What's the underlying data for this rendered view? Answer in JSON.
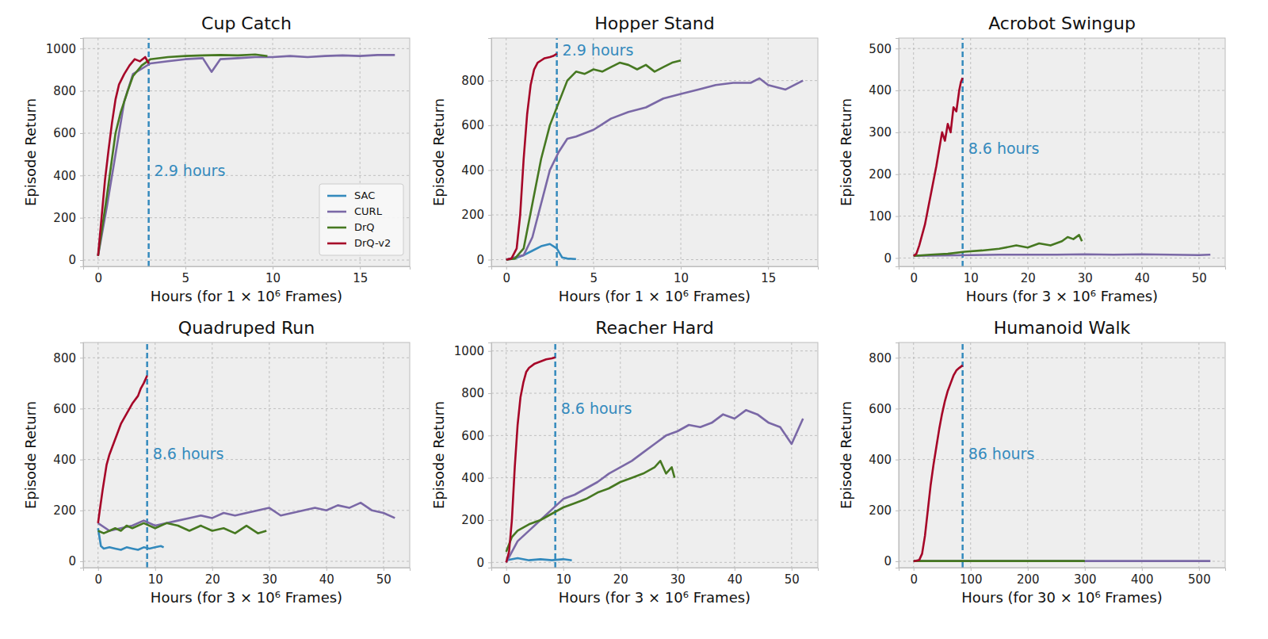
{
  "chart_data": [
    {
      "type": "line",
      "title": "Cup Catch",
      "x_label": "Hours (for 1 × 10⁶ Frames)",
      "y_label": "Episode Return",
      "xlim": [
        -0.85,
        17.85
      ],
      "ylim": [
        -30,
        1050
      ],
      "xticks": [
        0,
        5,
        10,
        15
      ],
      "yticks": [
        0,
        200,
        400,
        600,
        800,
        1000
      ],
      "grid": true,
      "legend": "lower right",
      "series": [
        {
          "name": "SAC",
          "color": "#348ABD",
          "x": [],
          "values": []
        },
        {
          "name": "CURL",
          "color": "#7A68A6",
          "x": [
            0,
            0.5,
            1,
            1.5,
            2,
            3,
            4,
            5,
            6,
            6.5,
            7,
            8,
            9,
            10,
            11,
            12,
            13,
            14,
            15,
            16,
            17
          ],
          "values": [
            20,
            250,
            500,
            750,
            880,
            930,
            940,
            950,
            955,
            890,
            950,
            955,
            960,
            960,
            965,
            960,
            965,
            968,
            965,
            970,
            970
          ]
        },
        {
          "name": "DrQ",
          "color": "#467821",
          "x": [
            0,
            0.5,
            1,
            1.3,
            1.7,
            2,
            2.5,
            3,
            4,
            5,
            6,
            7,
            8,
            9,
            9.7
          ],
          "values": [
            20,
            300,
            600,
            700,
            800,
            870,
            920,
            950,
            960,
            965,
            968,
            970,
            968,
            972,
            965
          ]
        },
        {
          "name": "DrQ-v2",
          "color": "#A60628",
          "x": [
            0,
            0.2,
            0.4,
            0.6,
            0.8,
            1,
            1.2,
            1.5,
            1.8,
            2.1,
            2.4,
            2.7,
            2.9
          ],
          "values": [
            20,
            200,
            380,
            520,
            650,
            760,
            830,
            880,
            920,
            950,
            940,
            960,
            930
          ]
        }
      ],
      "annotations": [
        {
          "x": 2.9,
          "y": 420,
          "text": "2.9 hours"
        }
      ]
    },
    {
      "type": "line",
      "title": "Hopper Stand",
      "x_label": "Hours (for 1 × 10⁶ Frames)",
      "y_label": "Episode Return",
      "xlim": [
        -0.85,
        17.85
      ],
      "ylim": [
        -30,
        990
      ],
      "xticks": [
        0,
        5,
        10,
        15
      ],
      "yticks": [
        0,
        200,
        400,
        600,
        800
      ],
      "grid": true,
      "series": [
        {
          "color": "#348ABD",
          "x": [
            0,
            0.5,
            1,
            1.5,
            2,
            2.5,
            2.9,
            3.2,
            3.5,
            4
          ],
          "values": [
            0,
            5,
            20,
            40,
            60,
            70,
            50,
            10,
            5,
            3
          ]
        },
        {
          "color": "#7A68A6",
          "x": [
            0,
            1,
            1.5,
            2,
            2.5,
            3,
            3.5,
            4,
            5,
            6,
            7,
            8,
            9,
            10,
            11,
            12,
            13,
            14,
            14.5,
            15,
            16,
            17
          ],
          "values": [
            0,
            20,
            100,
            250,
            400,
            480,
            540,
            550,
            580,
            630,
            660,
            680,
            720,
            740,
            760,
            780,
            790,
            790,
            810,
            780,
            760,
            800
          ]
        },
        {
          "color": "#467821",
          "x": [
            0,
            0.5,
            1,
            1.5,
            2,
            2.5,
            3,
            3.5,
            4,
            4.5,
            5,
            5.5,
            6,
            6.5,
            7,
            7.5,
            8,
            8.5,
            9,
            9.5,
            10
          ],
          "values": [
            0,
            5,
            50,
            250,
            450,
            600,
            700,
            800,
            840,
            830,
            850,
            840,
            860,
            880,
            870,
            850,
            870,
            840,
            860,
            880,
            890
          ]
        },
        {
          "color": "#A60628",
          "x": [
            0,
            0.3,
            0.6,
            0.8,
            1,
            1.2,
            1.4,
            1.6,
            1.8,
            2,
            2.2,
            2.5,
            2.7,
            2.9
          ],
          "values": [
            0,
            5,
            50,
            200,
            450,
            650,
            780,
            850,
            880,
            890,
            900,
            905,
            910,
            920
          ]
        }
      ],
      "annotations": [
        {
          "x": 2.9,
          "y": 930,
          "text": "2.9 hours"
        }
      ]
    },
    {
      "type": "line",
      "title": "Acrobot Swingup",
      "x_label": "Hours (for 3 × 10⁶ Frames)",
      "y_label": "Episode Return",
      "xlim": [
        -2.6,
        54.6
      ],
      "ylim": [
        -20,
        525
      ],
      "xticks": [
        0,
        10,
        20,
        30,
        40,
        50
      ],
      "yticks": [
        0,
        100,
        200,
        300,
        400,
        500
      ],
      "grid": true,
      "series": [
        {
          "color": "#7A68A6",
          "x": [
            0,
            5,
            10,
            15,
            20,
            25,
            30,
            35,
            40,
            45,
            50,
            52
          ],
          "values": [
            5,
            6,
            7,
            8,
            8,
            8,
            9,
            8,
            9,
            8,
            7,
            8
          ]
        },
        {
          "color": "#467821",
          "x": [
            0,
            3,
            6,
            9,
            12,
            15,
            18,
            20,
            22,
            24,
            26,
            27,
            28,
            29,
            29.5
          ],
          "values": [
            5,
            8,
            10,
            15,
            18,
            22,
            30,
            25,
            35,
            30,
            40,
            50,
            45,
            55,
            40
          ]
        },
        {
          "color": "#A60628",
          "x": [
            0,
            0.5,
            1,
            2,
            3,
            4,
            4.5,
            5,
            5.5,
            6,
            6.5,
            7,
            7.5,
            8,
            8.3,
            8.6
          ],
          "values": [
            5,
            10,
            30,
            80,
            150,
            220,
            260,
            300,
            280,
            320,
            300,
            360,
            350,
            400,
            420,
            430
          ]
        }
      ],
      "annotations": [
        {
          "x": 8.6,
          "y": 260,
          "text": "8.6 hours"
        }
      ]
    },
    {
      "type": "line",
      "title": "Quadruped Run",
      "x_label": "Hours (for 3 × 10⁶ Frames)",
      "y_label": "Episode Return",
      "xlim": [
        -2.6,
        54.6
      ],
      "ylim": [
        -25,
        860
      ],
      "xticks": [
        0,
        10,
        20,
        30,
        40,
        50
      ],
      "yticks": [
        0,
        200,
        400,
        600,
        800
      ],
      "grid": true,
      "series": [
        {
          "color": "#348ABD",
          "x": [
            0,
            0.5,
            1,
            2,
            3,
            4,
            5,
            6,
            7,
            8,
            9,
            10,
            11,
            11.5
          ],
          "values": [
            130,
            60,
            50,
            55,
            50,
            45,
            55,
            50,
            45,
            55,
            50,
            55,
            60,
            55
          ]
        },
        {
          "color": "#7A68A6",
          "x": [
            0,
            2,
            4,
            6,
            8,
            10,
            12,
            14,
            16,
            18,
            20,
            22,
            24,
            26,
            28,
            30,
            32,
            34,
            36,
            38,
            40,
            42,
            44,
            46,
            48,
            50,
            52
          ],
          "values": [
            150,
            120,
            130,
            140,
            160,
            140,
            150,
            160,
            170,
            180,
            170,
            190,
            180,
            190,
            200,
            210,
            180,
            190,
            200,
            210,
            200,
            220,
            210,
            230,
            200,
            190,
            170
          ]
        },
        {
          "color": "#467821",
          "x": [
            0,
            1,
            2,
            3,
            4,
            5,
            6,
            8,
            10,
            12,
            14,
            16,
            18,
            20,
            22,
            24,
            26,
            28,
            29.5
          ],
          "values": [
            120,
            110,
            120,
            130,
            120,
            140,
            130,
            150,
            130,
            150,
            140,
            120,
            140,
            120,
            130,
            110,
            140,
            110,
            120
          ]
        },
        {
          "color": "#A60628",
          "x": [
            0,
            0.3,
            0.8,
            1.5,
            2,
            3,
            4,
            5,
            6,
            7,
            7.5,
            8,
            8.6
          ],
          "values": [
            150,
            200,
            280,
            380,
            420,
            480,
            540,
            580,
            620,
            650,
            680,
            700,
            730
          ]
        }
      ],
      "annotations": [
        {
          "x": 8.6,
          "y": 420,
          "text": "8.6 hours"
        }
      ]
    },
    {
      "type": "line",
      "title": "Reacher Hard",
      "x_label": "Hours (for 3 × 10⁶ Frames)",
      "y_label": "Episode Return",
      "xlim": [
        -2.6,
        54.6
      ],
      "ylim": [
        -25,
        1040
      ],
      "xticks": [
        0,
        10,
        20,
        30,
        40,
        50
      ],
      "yticks": [
        0,
        200,
        400,
        600,
        800,
        1000
      ],
      "grid": true,
      "series": [
        {
          "color": "#348ABD",
          "x": [
            0,
            2,
            4,
            6,
            8,
            10,
            11.5
          ],
          "values": [
            10,
            20,
            10,
            15,
            10,
            15,
            10
          ]
        },
        {
          "color": "#7A68A6",
          "x": [
            0,
            2,
            4,
            6,
            8,
            10,
            12,
            14,
            16,
            18,
            20,
            22,
            24,
            26,
            28,
            30,
            32,
            34,
            36,
            38,
            40,
            42,
            44,
            46,
            48,
            50,
            52
          ],
          "values": [
            0,
            100,
            150,
            200,
            250,
            300,
            320,
            350,
            380,
            420,
            450,
            480,
            520,
            560,
            600,
            620,
            650,
            640,
            660,
            700,
            680,
            720,
            700,
            660,
            640,
            560,
            680
          ]
        },
        {
          "color": "#467821",
          "x": [
            0,
            1,
            2,
            4,
            6,
            8,
            10,
            12,
            14,
            16,
            18,
            20,
            22,
            24,
            26,
            27,
            28,
            29,
            29.5
          ],
          "values": [
            50,
            120,
            150,
            180,
            200,
            230,
            260,
            280,
            300,
            330,
            350,
            380,
            400,
            420,
            450,
            480,
            420,
            450,
            400
          ]
        },
        {
          "color": "#A60628",
          "x": [
            0,
            0.5,
            1,
            1.5,
            2,
            2.5,
            3,
            3.5,
            4,
            5,
            6,
            7,
            8,
            8.6
          ],
          "values": [
            0,
            50,
            200,
            450,
            650,
            780,
            850,
            900,
            920,
            940,
            950,
            960,
            965,
            970
          ]
        }
      ],
      "annotations": [
        {
          "x": 8.6,
          "y": 725,
          "text": "8.6 hours"
        }
      ]
    },
    {
      "type": "line",
      "title": "Humanoid Walk",
      "x_label": "Hours (for 30 × 10⁶ Frames)",
      "y_label": "Episode Return",
      "xlim": [
        -26,
        546
      ],
      "ylim": [
        -25,
        860
      ],
      "xticks": [
        0,
        100,
        200,
        300,
        400,
        500
      ],
      "yticks": [
        0,
        200,
        400,
        600,
        800
      ],
      "grid": true,
      "series": [
        {
          "color": "#7A68A6",
          "x": [
            0,
            100,
            200,
            300,
            400,
            500,
            520
          ],
          "values": [
            1,
            1,
            1,
            1,
            1,
            1,
            1
          ]
        },
        {
          "color": "#467821",
          "x": [
            0,
            100,
            200,
            300
          ],
          "values": [
            1,
            1,
            1,
            1
          ]
        },
        {
          "color": "#A60628",
          "x": [
            0,
            5,
            10,
            15,
            20,
            25,
            30,
            35,
            40,
            45,
            50,
            55,
            60,
            65,
            70,
            75,
            80,
            86
          ],
          "values": [
            0,
            2,
            5,
            30,
            100,
            200,
            300,
            380,
            450,
            520,
            580,
            630,
            670,
            700,
            730,
            750,
            760,
            770
          ]
        }
      ],
      "annotations": [
        {
          "x": 86,
          "y": 420,
          "text": "86 hours"
        }
      ]
    }
  ]
}
